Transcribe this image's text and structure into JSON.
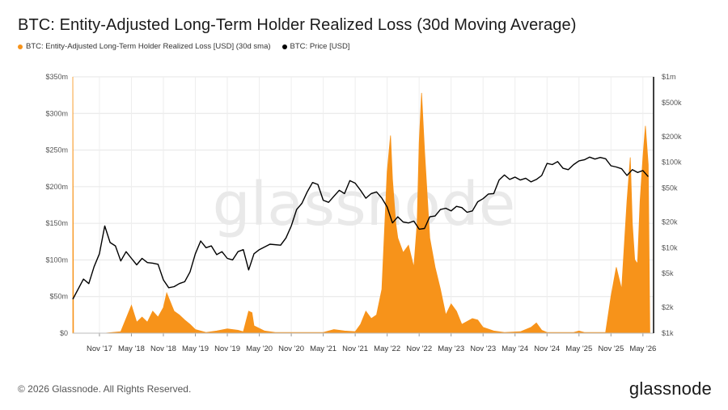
{
  "title": "BTC: Entity-Adjusted Long-Term Holder Realized Loss (30d Moving Average)",
  "legend": {
    "loss_label": "BTC: Entity-Adjusted Long-Term Holder Realized Loss [USD] (30d sma)",
    "price_label": "BTC: Price [USD]",
    "loss_color": "#f7931a",
    "price_color": "#000000"
  },
  "watermark": "glassnode",
  "footer": {
    "copyright": "© 2026 Glassnode. All Rights Reserved.",
    "logo": "glassnode"
  },
  "chart_data": {
    "type": "area",
    "xlabel": "",
    "ylabel": "",
    "x_start": "2017-06",
    "x_end": "2026-07",
    "x_tick_labels": [
      "Nov '17",
      "May '18",
      "Nov '18",
      "May '19",
      "Nov '19",
      "May '20",
      "Nov '20",
      "May '21",
      "Nov '21",
      "May '22",
      "Nov '22",
      "May '23",
      "Nov '23",
      "May '24",
      "Nov '24",
      "May '25",
      "Nov '25",
      "May '26"
    ],
    "x_tick_dates": [
      "2017-11",
      "2018-05",
      "2018-11",
      "2019-05",
      "2019-11",
      "2020-05",
      "2020-11",
      "2021-05",
      "2021-11",
      "2022-05",
      "2022-11",
      "2023-05",
      "2023-11",
      "2024-05",
      "2024-11",
      "2025-05",
      "2025-11",
      "2026-05"
    ],
    "y_left": {
      "ticks": [
        "$0",
        "$50m",
        "$100m",
        "$150m",
        "$200m",
        "$250m",
        "$300m",
        "$350m"
      ],
      "ylim": [
        0,
        350000000
      ]
    },
    "y_right": {
      "scale": "log",
      "ticks": [
        "$1k",
        "$2k",
        "$5k",
        "$10k",
        "$20k",
        "$50k",
        "$100k",
        "$200k",
        "$500k",
        "$1m"
      ],
      "ylim": [
        1000,
        1000000
      ]
    },
    "grid": true,
    "series": [
      {
        "name": "BTC: Entity-Adjusted Long-Term Holder Realized Loss [USD] (30d sma)",
        "axis": "left",
        "color": "#f7931a",
        "points": [
          [
            "2017-06",
            350000000
          ],
          [
            "2017-06-05",
            0
          ],
          [
            "2017-12",
            0
          ],
          [
            "2018-03",
            2000000
          ],
          [
            "2018-04",
            20000000
          ],
          [
            "2018-05",
            38000000
          ],
          [
            "2018-06",
            15000000
          ],
          [
            "2018-07",
            22000000
          ],
          [
            "2018-08",
            15000000
          ],
          [
            "2018-09",
            30000000
          ],
          [
            "2018-10",
            22000000
          ],
          [
            "2018-11",
            35000000
          ],
          [
            "2018-11-20",
            55000000
          ],
          [
            "2018-12",
            48000000
          ],
          [
            "2019-01",
            30000000
          ],
          [
            "2019-02",
            25000000
          ],
          [
            "2019-03",
            18000000
          ],
          [
            "2019-04",
            12000000
          ],
          [
            "2019-05",
            5000000
          ],
          [
            "2019-07",
            1000000
          ],
          [
            "2019-09",
            3000000
          ],
          [
            "2019-11",
            6000000
          ],
          [
            "2020-01",
            4000000
          ],
          [
            "2020-02",
            2000000
          ],
          [
            "2020-03",
            30000000
          ],
          [
            "2020-03-20",
            28000000
          ],
          [
            "2020-04",
            10000000
          ],
          [
            "2020-06",
            3000000
          ],
          [
            "2020-08",
            1000000
          ],
          [
            "2020-11",
            1000000
          ],
          [
            "2021-05",
            1000000
          ],
          [
            "2021-07",
            5000000
          ],
          [
            "2021-09",
            3000000
          ],
          [
            "2021-11",
            2000000
          ],
          [
            "2021-12",
            12000000
          ],
          [
            "2022-01",
            30000000
          ],
          [
            "2022-02",
            20000000
          ],
          [
            "2022-03",
            25000000
          ],
          [
            "2022-04",
            60000000
          ],
          [
            "2022-05",
            220000000
          ],
          [
            "2022-05-20",
            270000000
          ],
          [
            "2022-06",
            210000000
          ],
          [
            "2022-06-20",
            150000000
          ],
          [
            "2022-07",
            130000000
          ],
          [
            "2022-08",
            110000000
          ],
          [
            "2022-09",
            120000000
          ],
          [
            "2022-10",
            90000000
          ],
          [
            "2022-10-20",
            150000000
          ],
          [
            "2022-11",
            260000000
          ],
          [
            "2022-11-15",
            328000000
          ],
          [
            "2022-12",
            250000000
          ],
          [
            "2023-01",
            130000000
          ],
          [
            "2023-02",
            90000000
          ],
          [
            "2023-03",
            60000000
          ],
          [
            "2023-04",
            25000000
          ],
          [
            "2023-05",
            40000000
          ],
          [
            "2023-06",
            30000000
          ],
          [
            "2023-07",
            12000000
          ],
          [
            "2023-09",
            20000000
          ],
          [
            "2023-10",
            18000000
          ],
          [
            "2023-11",
            8000000
          ],
          [
            "2024-01",
            3000000
          ],
          [
            "2024-03",
            1000000
          ],
          [
            "2024-06",
            2000000
          ],
          [
            "2024-08",
            8000000
          ],
          [
            "2024-09",
            14000000
          ],
          [
            "2024-10",
            4000000
          ],
          [
            "2024-11",
            1000000
          ],
          [
            "2025-04",
            1000000
          ],
          [
            "2025-05",
            3000000
          ],
          [
            "2025-06",
            1000000
          ],
          [
            "2025-10",
            1000000
          ],
          [
            "2025-11",
            50000000
          ],
          [
            "2025-12",
            90000000
          ],
          [
            "2026-01",
            60000000
          ],
          [
            "2026-02",
            180000000
          ],
          [
            "2026-02-20",
            240000000
          ],
          [
            "2026-03",
            150000000
          ],
          [
            "2026-03-15",
            100000000
          ],
          [
            "2026-04",
            95000000
          ],
          [
            "2026-04-15",
            180000000
          ],
          [
            "2026-05",
            240000000
          ],
          [
            "2026-05-15",
            283000000
          ],
          [
            "2026-06",
            230000000
          ],
          [
            "2026-06-10",
            0
          ]
        ]
      },
      {
        "name": "BTC: Price [USD]",
        "axis": "right",
        "color": "#000000",
        "points": [
          [
            "2017-06",
            2500
          ],
          [
            "2017-08",
            4300
          ],
          [
            "2017-09",
            3800
          ],
          [
            "2017-10",
            6000
          ],
          [
            "2017-11",
            8500
          ],
          [
            "2017-12",
            18000
          ],
          [
            "2018-01",
            11500
          ],
          [
            "2018-02",
            10500
          ],
          [
            "2018-03",
            7000
          ],
          [
            "2018-04",
            9000
          ],
          [
            "2018-05",
            7500
          ],
          [
            "2018-06",
            6300
          ],
          [
            "2018-07",
            7500
          ],
          [
            "2018-08",
            6700
          ],
          [
            "2018-09",
            6600
          ],
          [
            "2018-10",
            6400
          ],
          [
            "2018-11",
            4200
          ],
          [
            "2018-12",
            3400
          ],
          [
            "2019-01",
            3500
          ],
          [
            "2019-02",
            3800
          ],
          [
            "2019-03",
            4000
          ],
          [
            "2019-04",
            5200
          ],
          [
            "2019-05",
            8500
          ],
          [
            "2019-06",
            12000
          ],
          [
            "2019-07",
            10000
          ],
          [
            "2019-08",
            10500
          ],
          [
            "2019-09",
            8300
          ],
          [
            "2019-10",
            9000
          ],
          [
            "2019-11",
            7500
          ],
          [
            "2019-12",
            7200
          ],
          [
            "2020-01",
            9000
          ],
          [
            "2020-02",
            9500
          ],
          [
            "2020-03",
            5500
          ],
          [
            "2020-04",
            8500
          ],
          [
            "2020-05",
            9500
          ],
          [
            "2020-07",
            11000
          ],
          [
            "2020-09",
            10700
          ],
          [
            "2020-10",
            13000
          ],
          [
            "2020-11",
            18000
          ],
          [
            "2020-12",
            28000
          ],
          [
            "2021-01",
            33000
          ],
          [
            "2021-02",
            45000
          ],
          [
            "2021-03",
            58000
          ],
          [
            "2021-04",
            55000
          ],
          [
            "2021-05",
            36000
          ],
          [
            "2021-06",
            34000
          ],
          [
            "2021-07",
            40000
          ],
          [
            "2021-08",
            47000
          ],
          [
            "2021-09",
            43000
          ],
          [
            "2021-10",
            61000
          ],
          [
            "2021-11",
            57000
          ],
          [
            "2021-12",
            47000
          ],
          [
            "2022-01",
            38000
          ],
          [
            "2022-02",
            43000
          ],
          [
            "2022-03",
            45000
          ],
          [
            "2022-04",
            38000
          ],
          [
            "2022-05",
            30000
          ],
          [
            "2022-06",
            19500
          ],
          [
            "2022-07",
            23000
          ],
          [
            "2022-08",
            20000
          ],
          [
            "2022-09",
            19500
          ],
          [
            "2022-10",
            20500
          ],
          [
            "2022-11",
            16500
          ],
          [
            "2022-12",
            16800
          ],
          [
            "2023-01",
            23000
          ],
          [
            "2023-02",
            23500
          ],
          [
            "2023-03",
            28000
          ],
          [
            "2023-04",
            29000
          ],
          [
            "2023-05",
            27000
          ],
          [
            "2023-06",
            30500
          ],
          [
            "2023-07",
            29500
          ],
          [
            "2023-08",
            26000
          ],
          [
            "2023-09",
            27000
          ],
          [
            "2023-10",
            34500
          ],
          [
            "2023-11",
            37500
          ],
          [
            "2023-12",
            42500
          ],
          [
            "2024-01",
            43000
          ],
          [
            "2024-02",
            62000
          ],
          [
            "2024-03",
            71000
          ],
          [
            "2024-04",
            63000
          ],
          [
            "2024-05",
            67000
          ],
          [
            "2024-06",
            62000
          ],
          [
            "2024-07",
            65000
          ],
          [
            "2024-08",
            59000
          ],
          [
            "2024-09",
            63000
          ],
          [
            "2024-10",
            70000
          ],
          [
            "2024-11",
            97000
          ],
          [
            "2024-12",
            94000
          ],
          [
            "2025-01",
            102000
          ],
          [
            "2025-02",
            85000
          ],
          [
            "2025-03",
            82000
          ],
          [
            "2025-04",
            94000
          ],
          [
            "2025-05",
            104000
          ],
          [
            "2025-06",
            107000
          ],
          [
            "2025-07",
            115000
          ],
          [
            "2025-08",
            109000
          ],
          [
            "2025-09",
            114000
          ],
          [
            "2025-10",
            110000
          ],
          [
            "2025-11",
            91000
          ],
          [
            "2025-12",
            88000
          ],
          [
            "2026-01",
            84000
          ],
          [
            "2026-02",
            70000
          ],
          [
            "2026-03",
            82000
          ],
          [
            "2026-04",
            76000
          ],
          [
            "2026-05",
            80000
          ],
          [
            "2026-06",
            68000
          ]
        ]
      }
    ]
  }
}
